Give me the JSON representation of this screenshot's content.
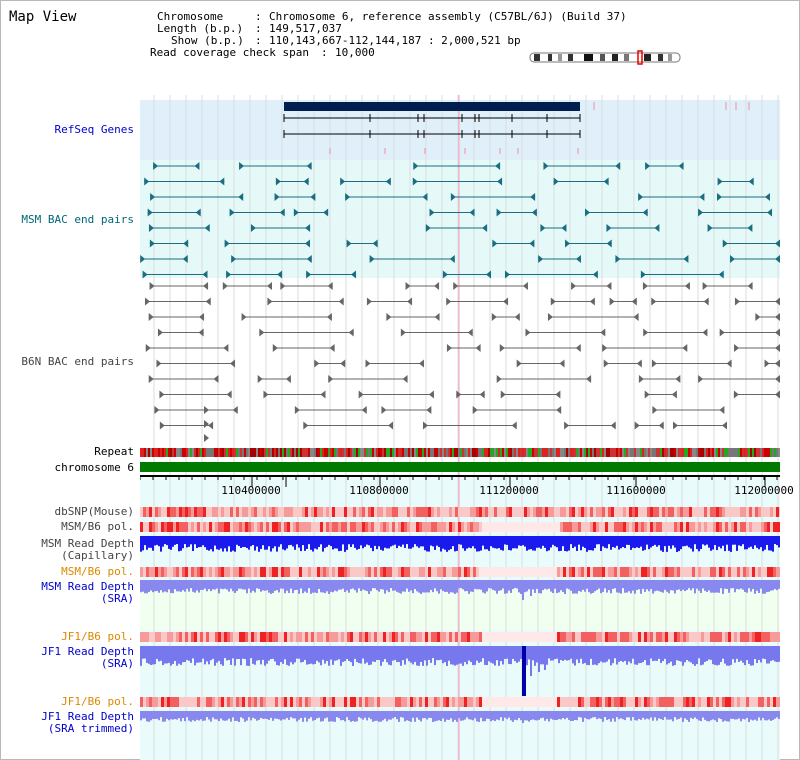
{
  "title": "Map View",
  "info": {
    "chromosome_label": "Chromosome",
    "chromosome_value": "Chromosome 6, reference assembly (C57BL/6J) (Build 37)",
    "length_label": "Length (b.p.)",
    "length_value": "149,517,037",
    "show_label": "Show (b.p.)",
    "show_value": "110,143,667-112,144,187 : 2,000,521 bp",
    "coverage_label": "Read coverage check span",
    "coverage_value": "10,000"
  },
  "tracks": {
    "refseq": "RefSeq Genes",
    "msm_bac": "MSM BAC end pairs",
    "b6n_bac": "B6N BAC end pairs",
    "repeat": "Repeat",
    "chromosome": "chromosome 6",
    "dbsnp": "dbSNP(Mouse)",
    "msm_b6_pol": "MSM/B6 pol.",
    "msm_depth_cap_1": "MSM Read Depth",
    "msm_depth_cap_2": "(Capillary)",
    "msm_b6_pol_sra": "MSM/B6 pol.",
    "msm_depth_sra_1": "MSM Read Depth",
    "msm_depth_sra_2": "(SRA)",
    "jf1_b6_pol": "JF1/B6 pol.",
    "jf1_depth_sra_1": "JF1 Read Depth",
    "jf1_depth_sra_2": "(SRA)",
    "jf1_b6_pol_trim": "JF1/B6 pol.",
    "jf1_depth_trim_1": "JF1 Read Depth",
    "jf1_depth_trim_2": "(SRA trimmed)"
  },
  "axis": {
    "ticks": [
      "110400000",
      "110800000",
      "111200000",
      "111600000",
      "112000000"
    ]
  },
  "colors": {
    "label_blue": "#0000cc",
    "label_teal": "#006677",
    "label_orange": "#dd8800",
    "label_gray": "#444444"
  }
}
